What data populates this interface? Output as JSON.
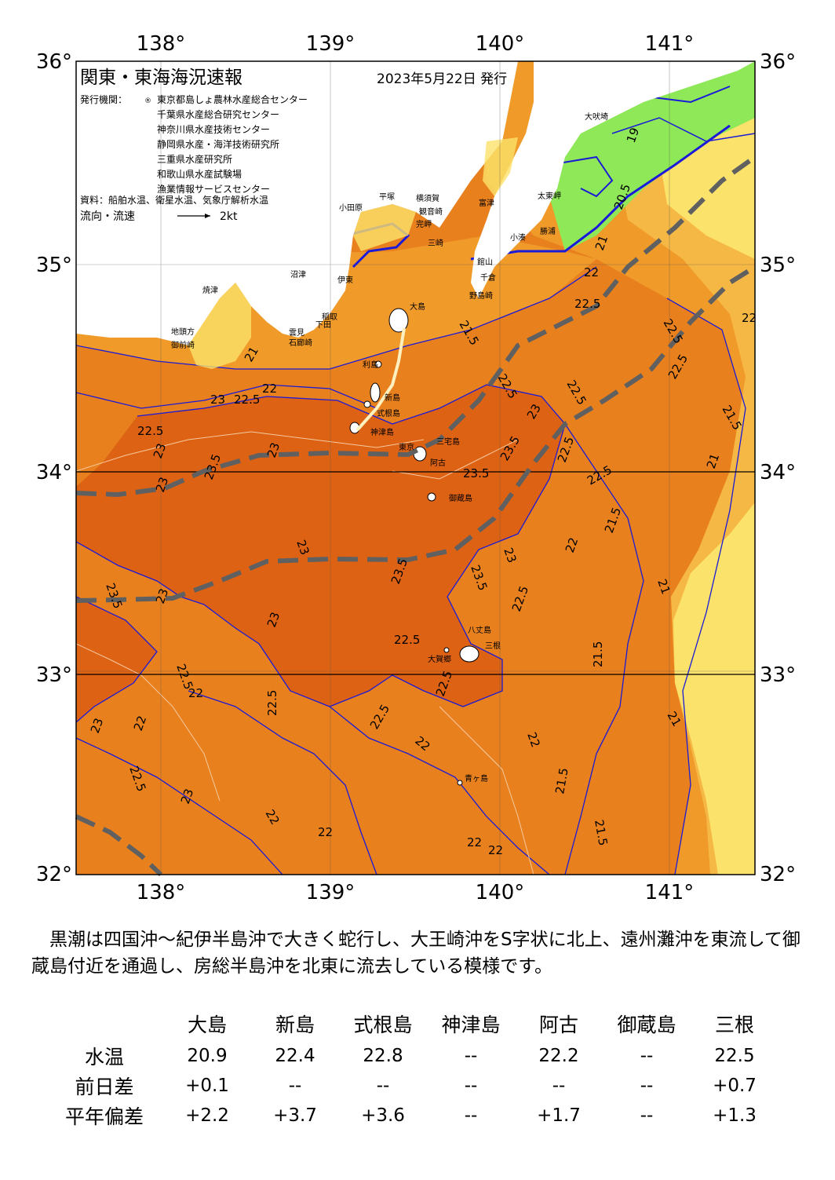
{
  "header": {
    "title": "関東・東海海況速報",
    "issue_date": "2023年5月22日 発行",
    "issuers_label": "発行機関：",
    "issuers": [
      "東京都島しょ農林水産総合センター",
      "千葉県水産総合研究センター",
      "神奈川県水産技術センター",
      "静岡県水産・海洋技術研究所",
      "三重県水産研究所",
      "和歌山県水産試験場",
      "漁業情報サービスセンター"
    ],
    "sources": "資料：船舶水温、衛星水温、気象庁解析水温",
    "legend_label": "流向・流速",
    "legend_speed": "2kt"
  },
  "map": {
    "lon_labels": [
      "138°",
      "139°",
      "140°",
      "141°"
    ],
    "lat_labels": [
      "36°",
      "35°",
      "34°",
      "33°",
      "32°"
    ],
    "lon_range": [
      137.5,
      141.5
    ],
    "lat_range": [
      32,
      36
    ],
    "kuroshio_axis_style": "gray dashed",
    "palette": {
      "ocean_warm": "#e8801e",
      "ocean_hot": "#de6214",
      "ocean_mid": "#f09a2a",
      "ocean_cool": "#f6b845",
      "ocean_cold": "#fbe26a",
      "ocean_coldest": "#8ee858",
      "land": "#ffffff",
      "isotherm": "#1a1ad8",
      "isotherm_minor": "#f5c9a0",
      "axis": "#606060"
    },
    "place_names": [
      {
        "name": "大吠埼"
      },
      {
        "name": "太東岬"
      },
      {
        "name": "勝浦"
      },
      {
        "name": "小湊"
      },
      {
        "name": "富津"
      },
      {
        "name": "館山"
      },
      {
        "name": "千倉"
      },
      {
        "name": "野島崎"
      },
      {
        "name": "横須賀"
      },
      {
        "name": "観音崎"
      },
      {
        "name": "平塚"
      },
      {
        "name": "小田原"
      },
      {
        "name": "完岬"
      },
      {
        "name": "三崎"
      },
      {
        "name": "焼津"
      },
      {
        "name": "沼津"
      },
      {
        "name": "伊東"
      },
      {
        "name": "稲取"
      },
      {
        "name": "下田"
      },
      {
        "name": "石廊崎"
      },
      {
        "name": "御前崎"
      },
      {
        "name": "地頭方"
      },
      {
        "name": "大島"
      },
      {
        "name": "利島"
      },
      {
        "name": "新島"
      },
      {
        "name": "式根島"
      },
      {
        "name": "神津島"
      },
      {
        "name": "三宅島"
      },
      {
        "name": "阿古"
      },
      {
        "name": "御蔵島"
      },
      {
        "name": "八丈島"
      },
      {
        "name": "三根"
      },
      {
        "name": "大賀郷"
      },
      {
        "name": "青ヶ島"
      },
      {
        "name": "東京"
      },
      {
        "name": "雲見"
      }
    ],
    "isotherm_labels": [
      "19",
      "20.5",
      "21",
      "21.5",
      "22",
      "22.5",
      "23",
      "23.5"
    ]
  },
  "summary": {
    "text": "黒潮は四国沖〜紀伊半島沖で大きく蛇行し、大王崎沖をS字状に北上、遠州灘沖を東流して御蔵島付近を通過し、房総半島沖を北東に流去している模様です。"
  },
  "table": {
    "columns": [
      "大島",
      "新島",
      "式根島",
      "神津島",
      "阿古",
      "御蔵島",
      "三根"
    ],
    "rows": [
      {
        "label": "水温",
        "values": [
          "20.9",
          "22.4",
          "22.8",
          "--",
          "22.2",
          "--",
          "22.5"
        ]
      },
      {
        "label": "前日差",
        "values": [
          "+0.1",
          "--",
          "--",
          "--",
          "--",
          "--",
          "+0.7"
        ]
      },
      {
        "label": "平年偏差",
        "values": [
          "+2.2",
          "+3.7",
          "+3.6",
          "--",
          "+1.7",
          "--",
          "+1.3"
        ]
      }
    ]
  }
}
